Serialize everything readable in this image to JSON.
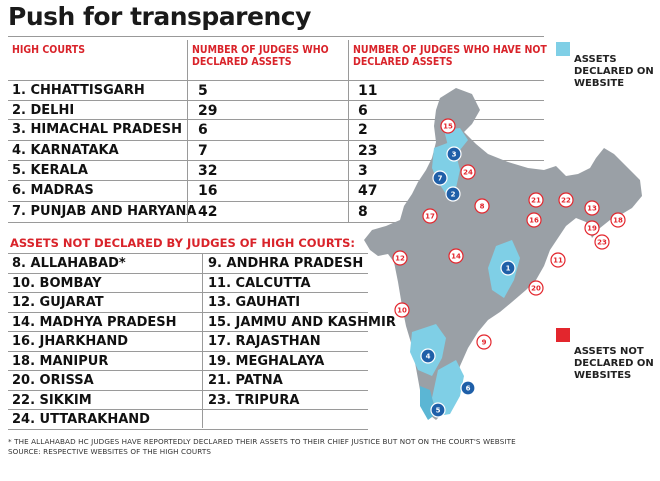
{
  "title": "Push for transparency",
  "table": {
    "col_court": "HIGH COURTS",
    "col_declared": "NUMBER OF JUDGES WHO DECLARED ASSETS",
    "col_not_declared": "NUMBER OF JUDGES WHO HAVE NOT DECLARED ASSETS",
    "rows": [
      {
        "court": "1. CHHATTISGARH",
        "declared": "5",
        "not_declared": "11"
      },
      {
        "court": "2. DELHI",
        "declared": "29",
        "not_declared": "6"
      },
      {
        "court": "3. HIMACHAL PRADESH",
        "declared": "6",
        "not_declared": "2"
      },
      {
        "court": "4. KARNATAKA",
        "declared": "7",
        "not_declared": "23"
      },
      {
        "court": "5. KERALA",
        "declared": "32",
        "not_declared": "3"
      },
      {
        "court": "6. MADRAS",
        "declared": "16",
        "not_declared": "47"
      },
      {
        "court": "7. PUNJAB AND HARYANA",
        "declared": "42",
        "not_declared": "8"
      }
    ]
  },
  "not_declared_section": {
    "heading": "ASSETS NOT DECLARED BY JUDGES OF HIGH COURTS:",
    "rows": [
      [
        "8. ALLAHABAD*",
        "9. ANDHRA PRADESH"
      ],
      [
        "10. BOMBAY",
        "11. CALCUTTA"
      ],
      [
        "12. GUJARAT",
        "13. GAUHATI"
      ],
      [
        "14. MADHYA PRADESH",
        "15. JAMMU AND KASHMIR"
      ],
      [
        "16. JHARKHAND",
        "17. RAJASTHAN"
      ],
      [
        "18. MANIPUR",
        "19. MEGHALAYA"
      ],
      [
        "20. ORISSA",
        "21. PATNA"
      ],
      [
        "22. SIKKIM",
        "23. TRIPURA"
      ],
      [
        "24. UTTARAKHAND",
        ""
      ]
    ]
  },
  "legend": {
    "website_label": "ASSETS DECLARED ON WEBSITE",
    "website_color": "#7fcfe6",
    "not_website_label": "ASSETS NOT DECLARED ON WEBSITES",
    "not_website_color": "#e3262d"
  },
  "map": {
    "land_color": "#9aa0a6",
    "blue_markers": [
      "1",
      "2",
      "3",
      "4",
      "5",
      "6",
      "7"
    ],
    "red_markers": [
      "8",
      "9",
      "10",
      "11",
      "12",
      "13",
      "14",
      "15",
      "16",
      "17",
      "18",
      "19",
      "20",
      "21",
      "22",
      "23",
      "24"
    ]
  },
  "footnote": "* THE ALLAHABAD HC JUDGES HAVE REPORTEDLY DECLARED THEIR ASSETS TO THEIR CHIEF JUSTICE BUT NOT ON THE COURT'S WEBSITE",
  "source": "SOURCE: RESPECTIVE WEBSITES OF THE HIGH COURTS"
}
